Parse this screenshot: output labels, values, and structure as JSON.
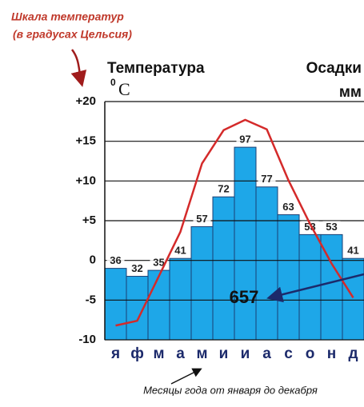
{
  "chart_data": {
    "type": "climate",
    "annotation_scale": [
      "Шкала температур",
      "(в градусах Цельсия)"
    ],
    "y_title": "Температура",
    "y_unit_degree": "0",
    "y_unit": "C",
    "y2_title": "Осадки",
    "y2_unit": "мм",
    "x_label": "Месяцы года от января до декабря",
    "total_label": "657",
    "categories": [
      "я",
      "ф",
      "м",
      "а",
      "м",
      "и",
      "и",
      "а",
      "с",
      "о",
      "н",
      "д"
    ],
    "series": [
      {
        "name": "Осадки",
        "type": "bar",
        "axis": "y2",
        "color": "#1ea7e8",
        "values": [
          36,
          32,
          35,
          41,
          57,
          72,
          97,
          77,
          63,
          53,
          53,
          41
        ]
      },
      {
        "name": "Температура",
        "type": "line",
        "axis": "y",
        "color": "#d42a2a",
        "values": [
          -8.2,
          -7.6,
          -2.0,
          3.6,
          12.2,
          16.4,
          17.7,
          16.5,
          10.1,
          4.6,
          -0.4,
          -4.7
        ]
      }
    ],
    "ylim": [
      -10,
      20
    ],
    "yticks": [
      {
        "value": 20,
        "label": "+20"
      },
      {
        "value": 15,
        "label": "+15"
      },
      {
        "value": 10,
        "label": "+10"
      },
      {
        "value": 5,
        "label": "+5"
      },
      0,
      -5,
      -10
    ],
    "y2lim": [
      0,
      120
    ],
    "grid": true
  }
}
